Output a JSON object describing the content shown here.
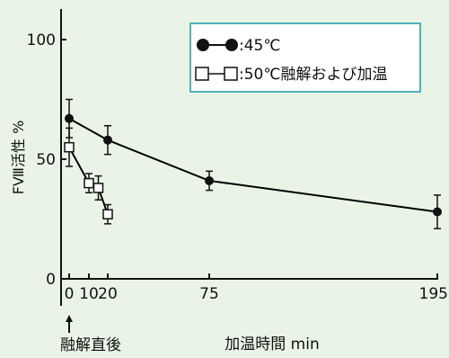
{
  "chart_data": {
    "type": "line",
    "ylabel": "FⅧ活性 %",
    "xlabel": "加温時間 min",
    "x_annotation": "融解直後",
    "yticks": [
      {
        "value": 0,
        "label": "0"
      },
      {
        "value": 50,
        "label": "50"
      },
      {
        "value": 100,
        "label": "100"
      }
    ],
    "xticks": [
      {
        "value": 0,
        "label": "0"
      },
      {
        "value": 10,
        "label": "10"
      },
      {
        "value": 20,
        "label": "20"
      },
      {
        "value": 75,
        "label": "75"
      },
      {
        "value": 195,
        "label": "195"
      }
    ],
    "xlim": [
      0,
      195
    ],
    "ylim": [
      0,
      100
    ],
    "grid": false,
    "legend_position": "top-right",
    "series": [
      {
        "name": ":45℃",
        "marker": "filled-circle",
        "color": "#000000",
        "points": [
          {
            "x": 0,
            "y": 67,
            "err": 8
          },
          {
            "x": 20,
            "y": 58,
            "err": 6
          },
          {
            "x": 75,
            "y": 41,
            "err": 4
          },
          {
            "x": 195,
            "y": 28,
            "err": 7
          }
        ]
      },
      {
        "name": ":50℃融解および加温",
        "marker": "open-square",
        "color": "#000000",
        "points": [
          {
            "x": 0,
            "y": 55,
            "err": 8
          },
          {
            "x": 10,
            "y": 40,
            "err": 4
          },
          {
            "x": 15,
            "y": 38,
            "err": 5
          },
          {
            "x": 20,
            "y": 27,
            "err": 4
          }
        ]
      }
    ]
  }
}
